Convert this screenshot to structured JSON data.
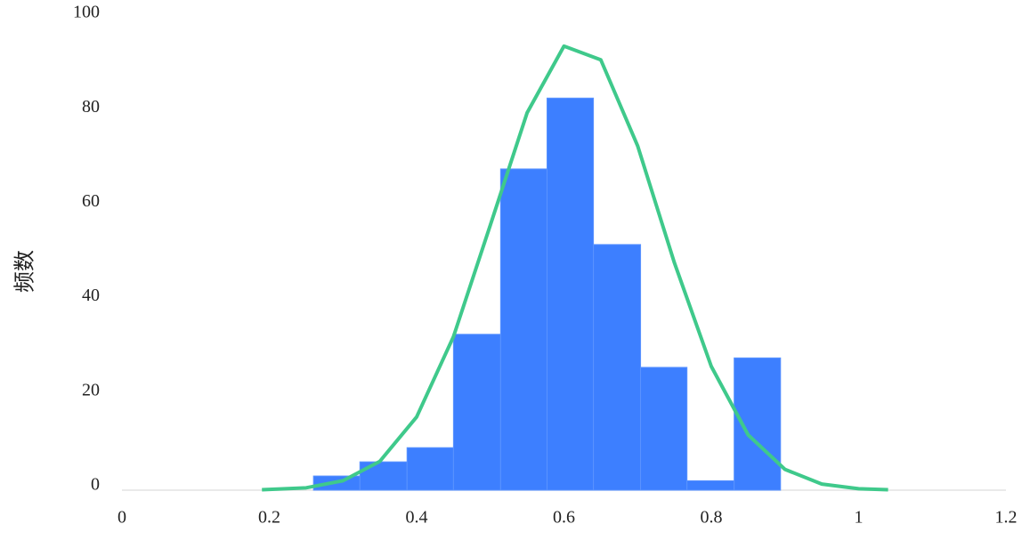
{
  "chart_data": {
    "type": "histogram",
    "ylabel": "频数",
    "bins": [
      0.26,
      0.323,
      0.387,
      0.45,
      0.514,
      0.577,
      0.64,
      0.704,
      0.767,
      0.831,
      0.894
    ],
    "values": [
      3,
      6,
      9,
      33,
      68,
      83,
      52,
      26,
      2,
      28
    ],
    "color": "#3d7fff",
    "curve": {
      "color": "#3fc98b",
      "x": [
        0.19,
        0.25,
        0.3,
        0.35,
        0.4,
        0.45,
        0.5,
        0.55,
        0.6,
        0.65,
        0.7,
        0.75,
        0.8,
        0.85,
        0.9,
        0.95,
        1.0,
        1.04
      ],
      "values": [
        0.1,
        0.5,
        2.0,
        6.1,
        15.5,
        32.5,
        56.1,
        79.9,
        94,
        91.1,
        72.9,
        48.1,
        26.2,
        11.7,
        4.4,
        1.3,
        0.3,
        0.1
      ]
    },
    "xlim": [
      0,
      1.2
    ],
    "xticks": [
      0,
      0.2,
      0.4,
      0.6,
      0.8,
      1,
      1.2
    ],
    "ylim": [
      0,
      100
    ],
    "yticks": [
      0,
      20,
      40,
      60,
      80,
      100
    ]
  }
}
